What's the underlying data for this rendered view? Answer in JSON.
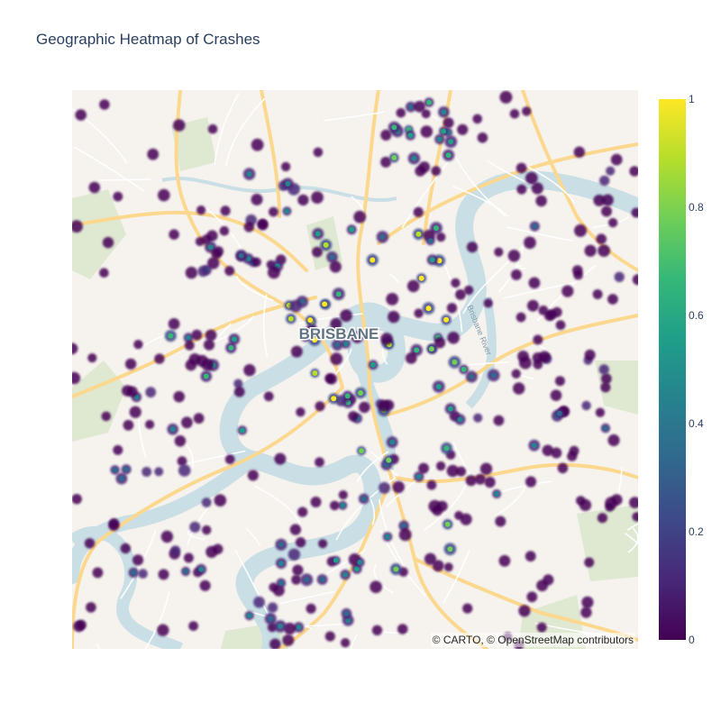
{
  "title": "Geographic Heatmap of Crashes",
  "attribution": "© CARTO, © OpenStreetMap contributors",
  "city_label": "BRISBANE",
  "river_label": "Brisbane River",
  "colors": {
    "land": "#f6f3ee",
    "park": "#dfe9d2",
    "water": "#c9dfe5",
    "major_road": "#fbd88e",
    "minor_road": "#ffffff",
    "colorscale": [
      "#440154",
      "#482878",
      "#3e4989",
      "#31688e",
      "#26828e",
      "#1f9e89",
      "#35b779",
      "#6ece58",
      "#b5de2b",
      "#fde725"
    ]
  },
  "colorbar": {
    "min": 0,
    "max": 1,
    "ticks": [
      {
        "value": 1,
        "label": "1"
      },
      {
        "value": 0.8,
        "label": "0.8"
      },
      {
        "value": 0.6,
        "label": "0.6"
      },
      {
        "value": 0.4,
        "label": "0.4"
      },
      {
        "value": 0.2,
        "label": "0.2"
      },
      {
        "value": 0,
        "label": "0"
      }
    ]
  },
  "chart_data": {
    "type": "heatmap",
    "subtype": "density_mapbox",
    "title": "Geographic Heatmap of Crashes",
    "map_style": "carto-positron",
    "center_label": "BRISBANE",
    "zlim": [
      0,
      1
    ],
    "colorscale": "Viridis"
  }
}
